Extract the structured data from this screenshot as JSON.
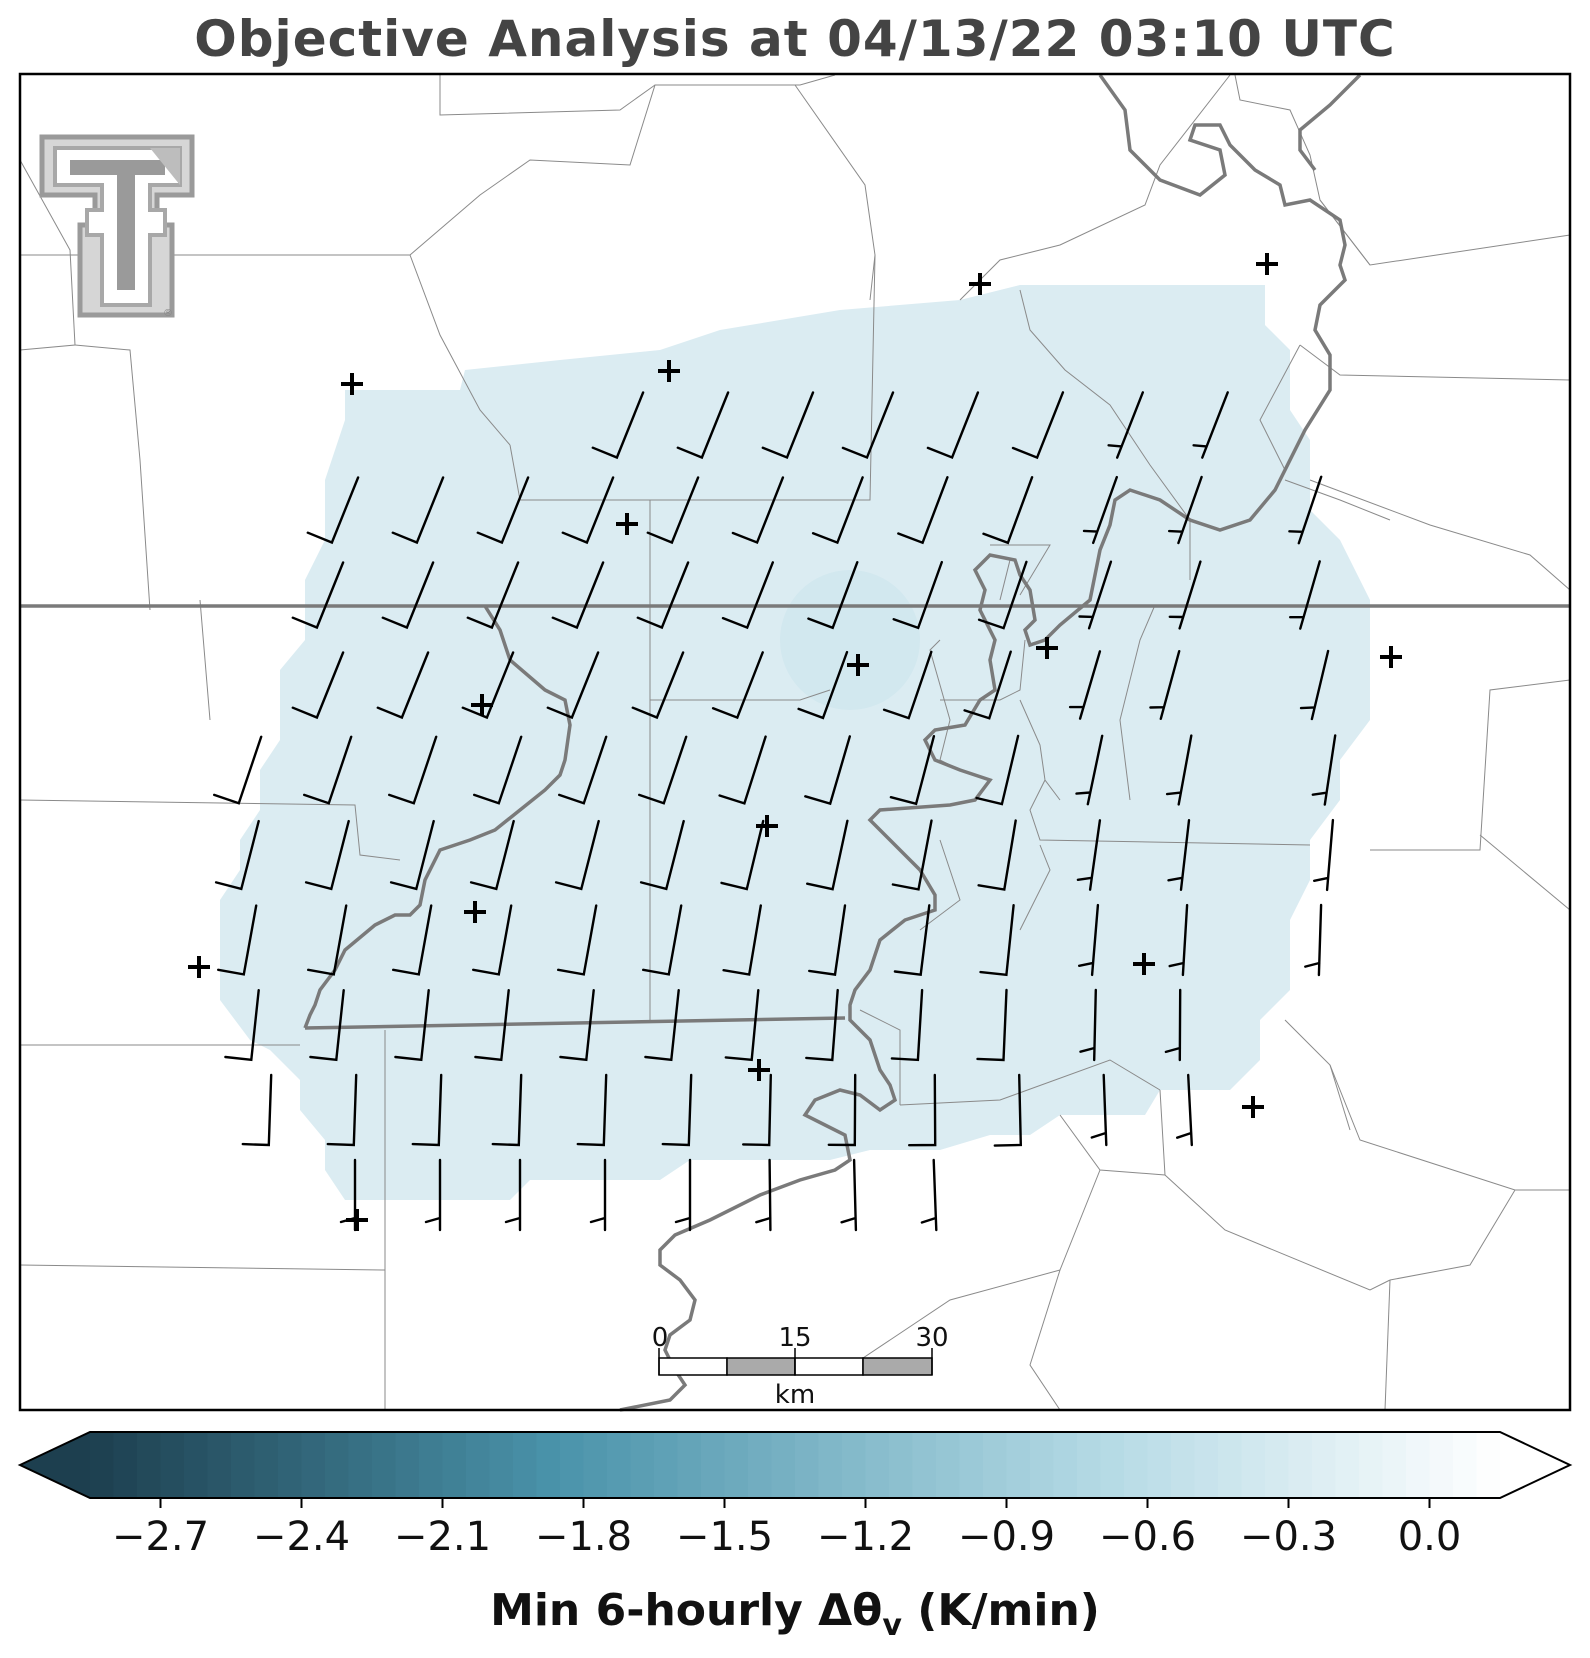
{
  "title": "Objective Analysis at 04/13/22 03:10 UTC",
  "colorbar": {
    "label_main": "Min 6-hourly Δθ",
    "label_sub": "v",
    "label_units": " (K/min)",
    "ticks": [
      "−2.7",
      "−2.4",
      "−2.1",
      "−1.8",
      "−1.5",
      "−1.2",
      "−0.9",
      "−0.6",
      "−0.3",
      "0.0"
    ],
    "tick_values": [
      -2.7,
      -2.4,
      -2.1,
      -1.8,
      -1.5,
      -1.2,
      -0.9,
      -0.6,
      -0.3,
      0.0
    ],
    "range": [
      -2.85,
      0.15
    ],
    "color_low": "#1d3f4f",
    "color_mid": "#4a93aa",
    "color_light": "#b5dae5",
    "color_high": "#ffffff"
  },
  "scale_bar": {
    "labels": [
      "0",
      "15",
      "30"
    ],
    "unit": "km"
  },
  "analysis_fill_color": "#dbecf2",
  "logo": "texas-tech-double-t-logo",
  "station_marker": "plus"
}
